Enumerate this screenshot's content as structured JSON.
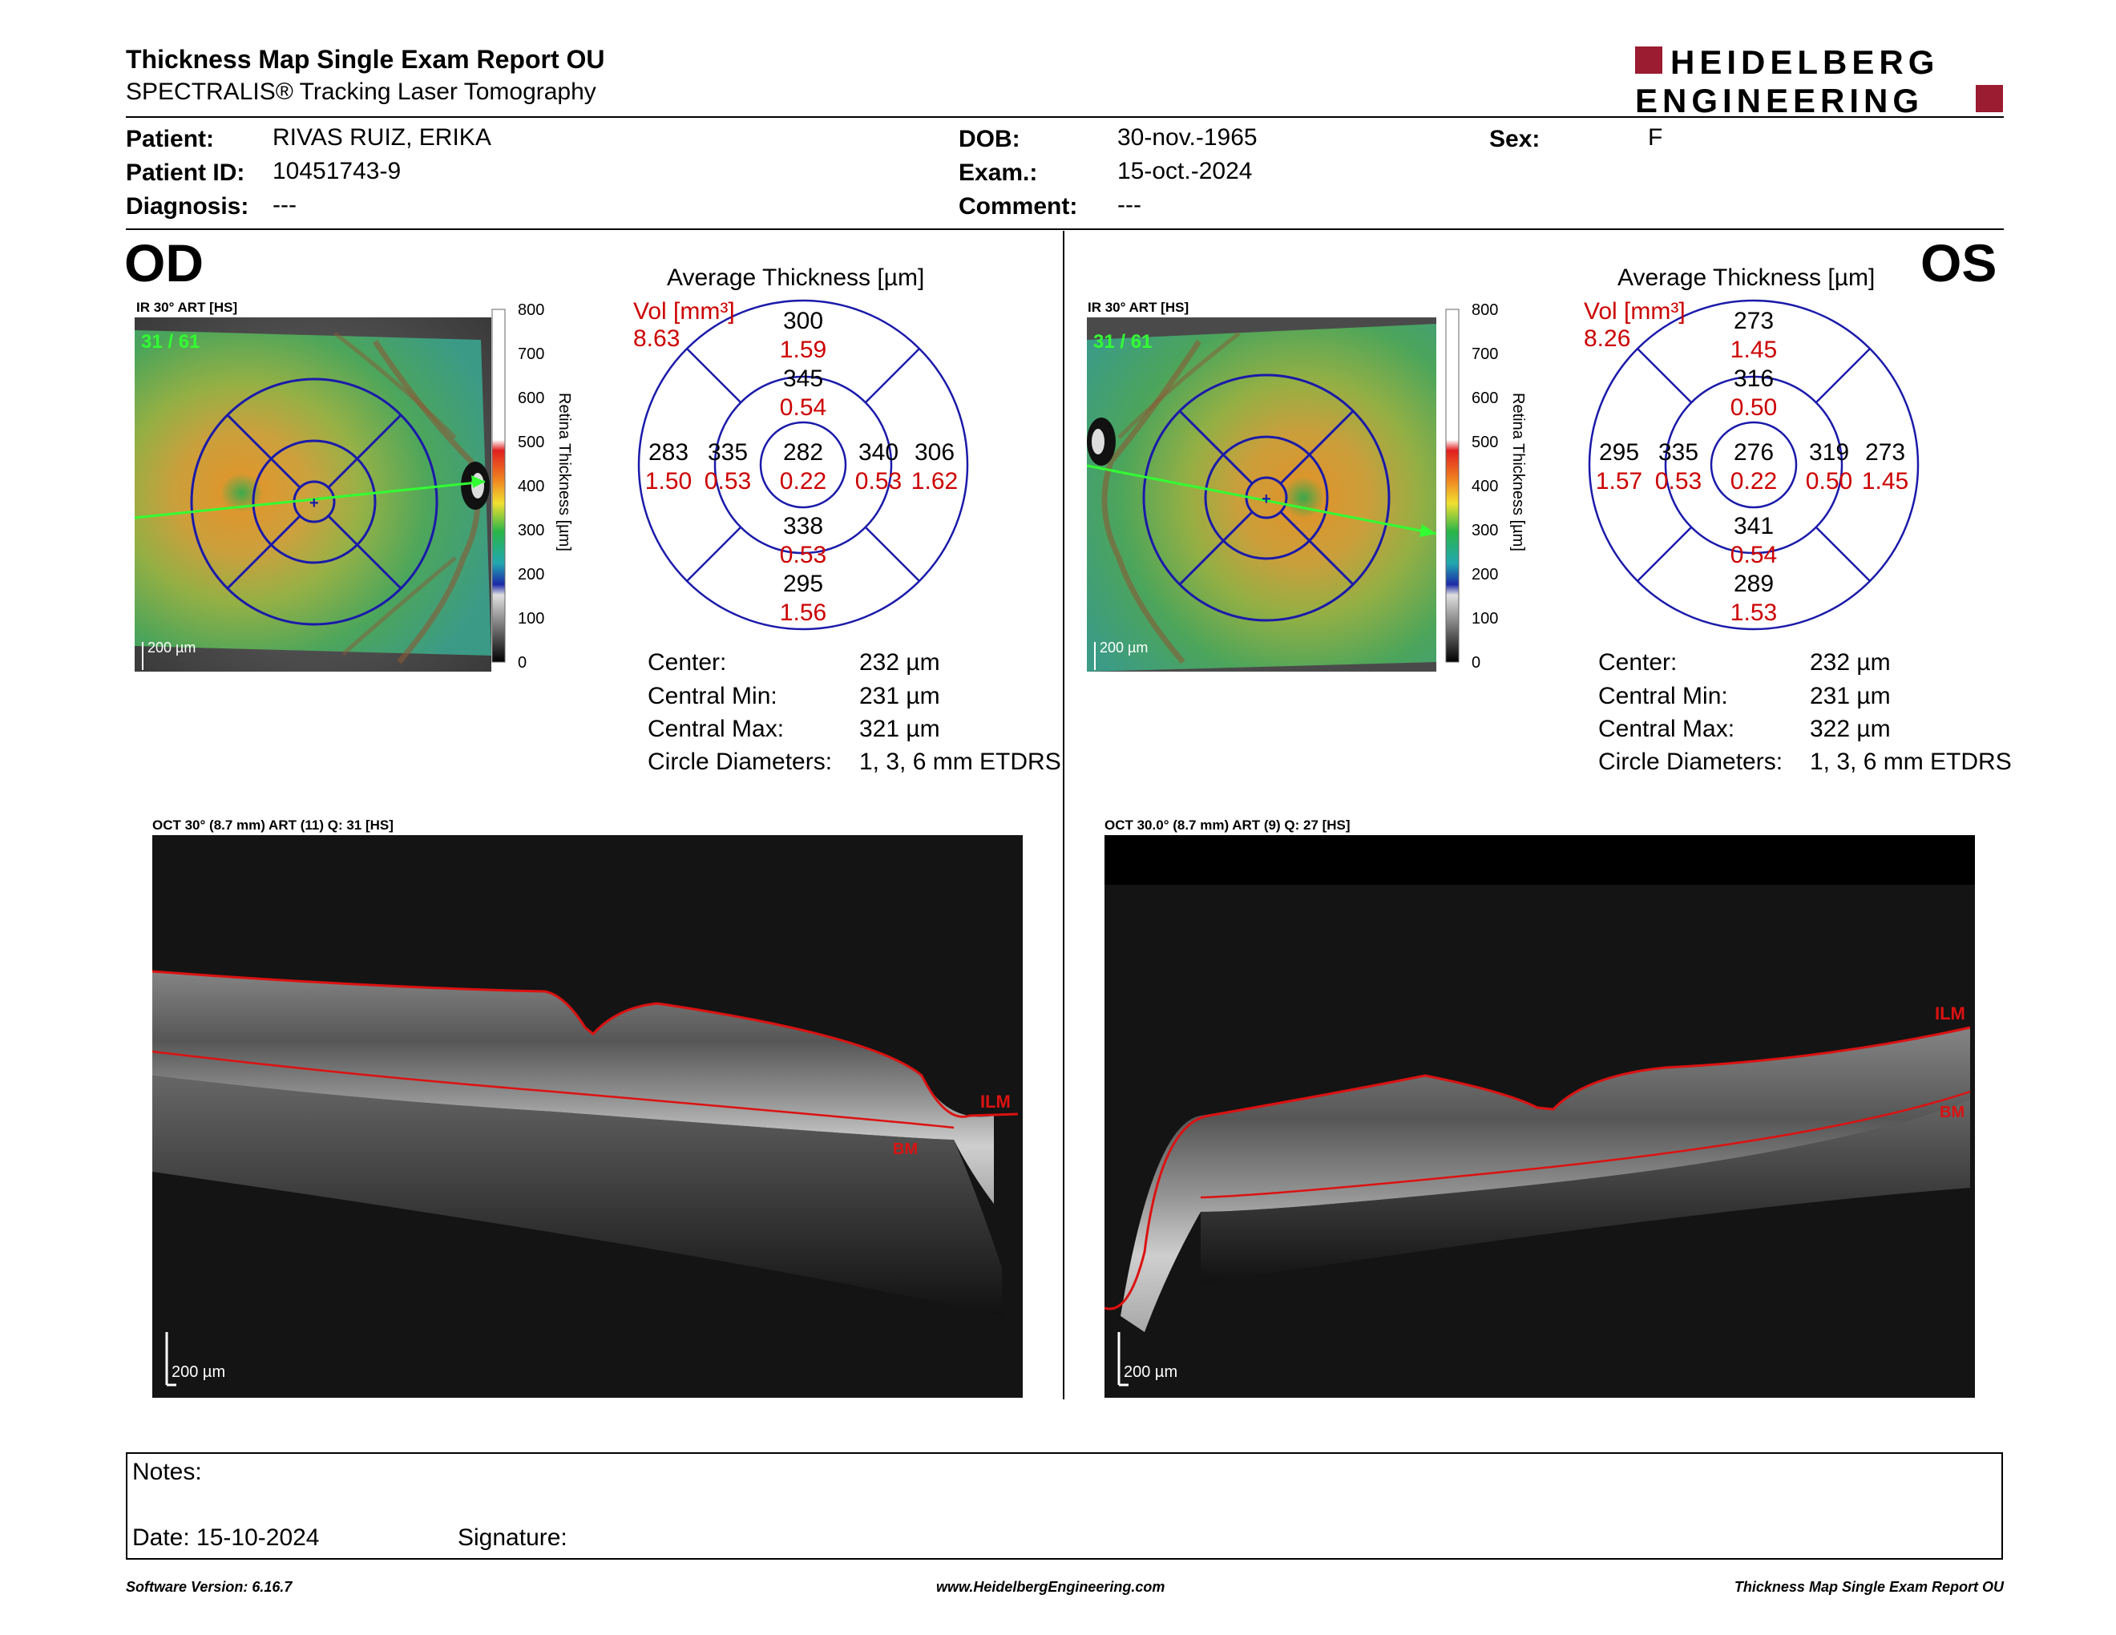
{
  "header": {
    "title": "Thickness Map Single Exam Report OU",
    "subtitle": "SPECTRALIS® Tracking Laser Tomography",
    "logo_line1": "HEIDELBERG",
    "logo_line2": "ENGINEERING",
    "brand_color": "#9b1b30"
  },
  "patient": {
    "patient_label": "Patient:",
    "patient_value": "RIVAS RUIZ, ERIKA",
    "id_label": "Patient ID:",
    "id_value": "10451743-9",
    "diagnosis_label": "Diagnosis:",
    "diagnosis_value": "---",
    "dob_label": "DOB:",
    "dob_value": "30-nov.-1965",
    "exam_label": "Exam.:",
    "exam_value": "15-oct.-2024",
    "comment_label": "Comment:",
    "comment_value": "---",
    "sex_label": "Sex:",
    "sex_value": "F"
  },
  "od": {
    "eye_label": "OD",
    "ir_label": "IR 30° ART [HS]",
    "frame_counter": "31 / 61",
    "scale_text": "200 µm",
    "avg_title": "Average Thickness [µm]",
    "vol_label": "Vol [mm³]",
    "vol_value": "8.63",
    "grid": {
      "center_t": "282",
      "center_v": "0.22",
      "inner_sup_t": "345",
      "inner_sup_v": "0.54",
      "inner_inf_t": "338",
      "inner_inf_v": "0.53",
      "inner_left_t": "335",
      "inner_left_v": "0.53",
      "inner_right_t": "340",
      "inner_right_v": "0.53",
      "outer_sup_t": "300",
      "outer_sup_v": "1.59",
      "outer_inf_t": "295",
      "outer_inf_v": "1.56",
      "outer_left_t": "283",
      "outer_left_v": "1.50",
      "outer_right_t": "306",
      "outer_right_v": "1.62"
    },
    "stats": {
      "center_label": "Center:",
      "center_value": "232 µm",
      "min_label": "Central Min:",
      "min_value": "231 µm",
      "max_label": "Central Max:",
      "max_value": "321 µm",
      "circ_label": "Circle Diameters:",
      "circ_value": "1, 3, 6 mm ETDRS"
    },
    "oct_label": "OCT 30° (8.7 mm) ART (11) Q: 31 [HS]",
    "oct_scale": "200 µm",
    "ilm": "ILM",
    "bm": "BM"
  },
  "os": {
    "eye_label": "OS",
    "ir_label": "IR 30° ART [HS]",
    "frame_counter": "31 / 61",
    "scale_text": "200 µm",
    "avg_title": "Average Thickness [µm]",
    "vol_label": "Vol [mm³]",
    "vol_value": "8.26",
    "grid": {
      "center_t": "276",
      "center_v": "0.22",
      "inner_sup_t": "316",
      "inner_sup_v": "0.50",
      "inner_inf_t": "341",
      "inner_inf_v": "0.54",
      "inner_left_t": "335",
      "inner_left_v": "0.53",
      "inner_right_t": "319",
      "inner_right_v": "0.50",
      "outer_sup_t": "273",
      "outer_sup_v": "1.45",
      "outer_inf_t": "289",
      "outer_inf_v": "1.53",
      "outer_left_t": "295",
      "outer_left_v": "1.57",
      "outer_right_t": "273",
      "outer_right_v": "1.45"
    },
    "stats": {
      "center_label": "Center:",
      "center_value": "232 µm",
      "min_label": "Central Min:",
      "min_value": "231 µm",
      "max_label": "Central Max:",
      "max_value": "322 µm",
      "circ_label": "Circle Diameters:",
      "circ_value": "1, 3, 6 mm ETDRS"
    },
    "oct_label": "OCT 30.0° (8.7 mm) ART (9) Q: 27 [HS]",
    "oct_scale": "200 µm",
    "ilm": "ILM",
    "bm": "BM"
  },
  "colorbar": {
    "title": "Retina Thickness [µm]",
    "ticks": [
      "800",
      "700",
      "600",
      "500",
      "400",
      "300",
      "200",
      "100",
      "0"
    ]
  },
  "notes": {
    "notes_label": "Notes:",
    "date_label": "Date: 15-10-2024",
    "signature_label": "Signature:"
  },
  "footer": {
    "left": "Software Version: 6.16.7",
    "center": "www.HeidelbergEngineering.com",
    "right": "Thickness Map Single Exam Report OU"
  }
}
